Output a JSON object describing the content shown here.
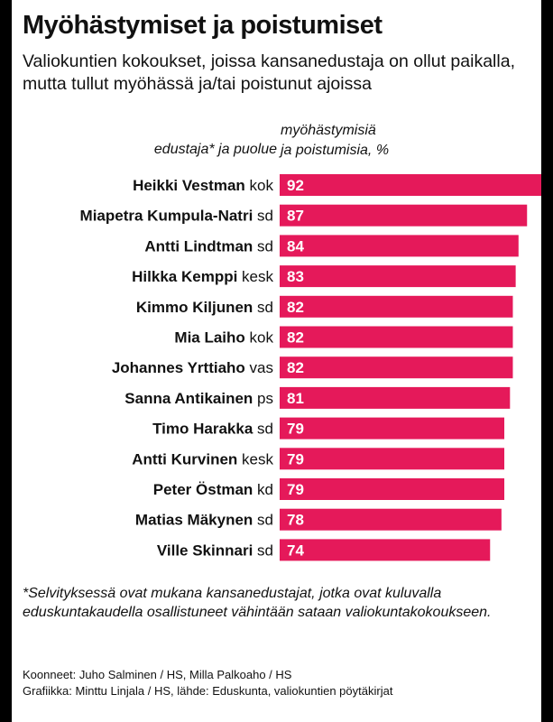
{
  "title": "Myöhästymiset ja poistumiset",
  "subtitle": "Valiokuntien kokoukset, joissa kansanedustaja on ollut paikalla, mutta tullut myöhässä ja/tai poistunut ajoissa",
  "header_left": "edustaja* ja puolue",
  "header_right_line1": "myöhästymisiä",
  "header_right_line2": "ja poistumisia, %",
  "footnote": "*Selvityksessä ovat mukana kansanedustajat, jotka ovat kuluvalla eduskuntakaudella osallistuneet vähintään sataan valiokuntakokoukseen.",
  "credits": {
    "line1": "Koonneet: Juho Salminen / HS, Milla Palkoaho / HS",
    "line2": "Grafiikka: Minttu Linjala / HS, lähde: Eduskunta, valiokuntien pöytäkirjat"
  },
  "colors": {
    "bar": "#e5195a",
    "value_text": "#ffffff"
  },
  "chart_data": {
    "type": "bar",
    "orientation": "horizontal",
    "ylabel": "edustaja* ja puolue",
    "xlabel": "myöhästymisiä ja poistumisia, %",
    "xlim": [
      0,
      92
    ],
    "categories": [
      {
        "name": "Heikki Vestman",
        "party": "kok"
      },
      {
        "name": "Miapetra Kumpula-Natri",
        "party": "sd"
      },
      {
        "name": "Antti Lindtman",
        "party": "sd"
      },
      {
        "name": "Hilkka Kemppi",
        "party": "kesk"
      },
      {
        "name": "Kimmo Kiljunen",
        "party": "sd"
      },
      {
        "name": "Mia Laiho",
        "party": "kok"
      },
      {
        "name": "Johannes Yrttiaho",
        "party": "vas"
      },
      {
        "name": "Sanna Antikainen",
        "party": "ps"
      },
      {
        "name": "Timo Harakka",
        "party": "sd"
      },
      {
        "name": "Antti Kurvinen",
        "party": "kesk"
      },
      {
        "name": "Peter Östman",
        "party": "kd"
      },
      {
        "name": "Matias Mäkynen",
        "party": "sd"
      },
      {
        "name": "Ville Skinnari",
        "party": "sd"
      }
    ],
    "values": [
      92,
      87,
      84,
      83,
      82,
      82,
      82,
      81,
      79,
      79,
      79,
      78,
      74
    ]
  }
}
